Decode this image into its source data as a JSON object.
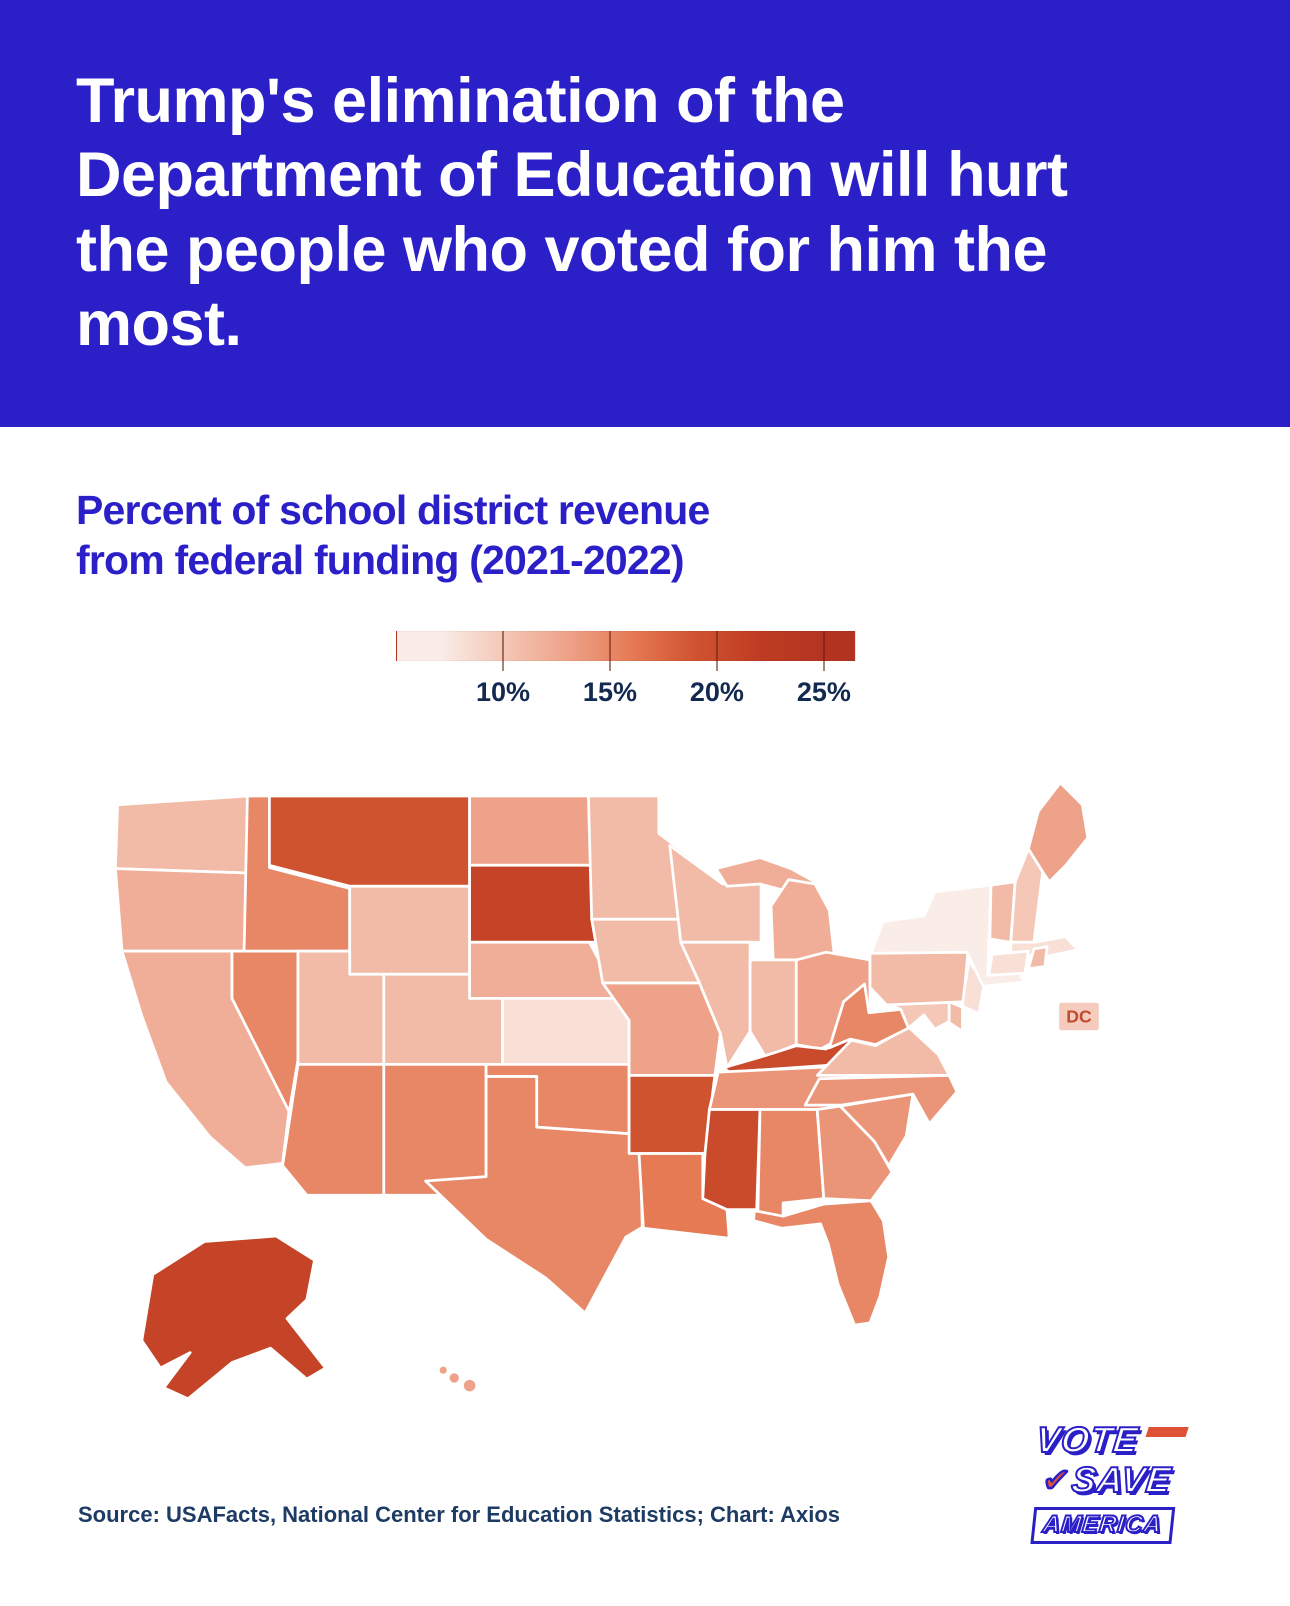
{
  "banner": {
    "title": "Trump's elimination of the Department of Education will hurt the people who voted for him the most."
  },
  "subtitle": "Percent of school district revenue from federal funding (2021-2022)",
  "legend": {
    "tick_labels": [
      "10%",
      "15%",
      "20%",
      "25%"
    ]
  },
  "map": {
    "dc_label": "DC"
  },
  "source": "Source: USAFacts, National Center for Education Statistics; Chart: Axios",
  "logo": {
    "lines": [
      "VOTE",
      "SAVE",
      "AMERICA"
    ]
  },
  "colors": {
    "accent_blue": "#2b1fc7",
    "accent_red": "#e05237",
    "scale_low": "#faede8",
    "scale_high": "#b23420"
  },
  "chart_data": {
    "type": "heatmap",
    "geography": "us-states-choropleth",
    "title": "Percent of school district revenue from federal funding (2021-2022)",
    "unit": "%",
    "legend_ticks": [
      10,
      15,
      20,
      25
    ],
    "legend_domain": [
      5,
      26.5
    ],
    "scale": [
      {
        "value": 7,
        "color": "#faede8"
      },
      {
        "value": 10,
        "color": "#f4c7b6"
      },
      {
        "value": 13,
        "color": "#eea289"
      },
      {
        "value": 16,
        "color": "#e57a55"
      },
      {
        "value": 19,
        "color": "#d05330"
      },
      {
        "value": 22,
        "color": "#bf3c23"
      },
      {
        "value": 25,
        "color": "#b23420"
      }
    ],
    "states": [
      {
        "abbr": "AL",
        "name": "Alabama",
        "value": 15
      },
      {
        "abbr": "AK",
        "name": "Alaska",
        "value": 21
      },
      {
        "abbr": "AZ",
        "name": "Arizona",
        "value": 15
      },
      {
        "abbr": "AR",
        "name": "Arkansas",
        "value": 19
      },
      {
        "abbr": "CA",
        "name": "California",
        "value": 12
      },
      {
        "abbr": "CO",
        "name": "Colorado",
        "value": 11
      },
      {
        "abbr": "CT",
        "name": "Connecticut",
        "value": 8
      },
      {
        "abbr": "DE",
        "name": "Delaware",
        "value": 11
      },
      {
        "abbr": "DC",
        "name": "District of Columbia",
        "value": 18
      },
      {
        "abbr": "FL",
        "name": "Florida",
        "value": 15
      },
      {
        "abbr": "GA",
        "name": "Georgia",
        "value": 14
      },
      {
        "abbr": "HI",
        "name": "Hawaii",
        "value": 13
      },
      {
        "abbr": "ID",
        "name": "Idaho",
        "value": 15
      },
      {
        "abbr": "IL",
        "name": "Illinois",
        "value": 11
      },
      {
        "abbr": "IN",
        "name": "Indiana",
        "value": 11
      },
      {
        "abbr": "IA",
        "name": "Iowa",
        "value": 11
      },
      {
        "abbr": "KS",
        "name": "Kansas",
        "value": 8
      },
      {
        "abbr": "KY",
        "name": "Kentucky",
        "value": 20
      },
      {
        "abbr": "LA",
        "name": "Louisiana",
        "value": 16
      },
      {
        "abbr": "ME",
        "name": "Maine",
        "value": 13
      },
      {
        "abbr": "MD",
        "name": "Maryland",
        "value": 10
      },
      {
        "abbr": "MA",
        "name": "Massachusetts",
        "value": 8
      },
      {
        "abbr": "MI",
        "name": "Michigan",
        "value": 12
      },
      {
        "abbr": "MN",
        "name": "Minnesota",
        "value": 11
      },
      {
        "abbr": "MS",
        "name": "Mississippi",
        "value": 20
      },
      {
        "abbr": "MO",
        "name": "Missouri",
        "value": 13
      },
      {
        "abbr": "MT",
        "name": "Montana",
        "value": 19
      },
      {
        "abbr": "NE",
        "name": "Nebraska",
        "value": 12
      },
      {
        "abbr": "NV",
        "name": "Nevada",
        "value": 15
      },
      {
        "abbr": "NH",
        "name": "New Hampshire",
        "value": 10
      },
      {
        "abbr": "NJ",
        "name": "New Jersey",
        "value": 8
      },
      {
        "abbr": "NM",
        "name": "New Mexico",
        "value": 15
      },
      {
        "abbr": "NY",
        "name": "New York",
        "value": 7
      },
      {
        "abbr": "NC",
        "name": "North Carolina",
        "value": 14
      },
      {
        "abbr": "ND",
        "name": "North Dakota",
        "value": 13
      },
      {
        "abbr": "OH",
        "name": "Ohio",
        "value": 13
      },
      {
        "abbr": "OK",
        "name": "Oklahoma",
        "value": 15
      },
      {
        "abbr": "OR",
        "name": "Oregon",
        "value": 12
      },
      {
        "abbr": "PA",
        "name": "Pennsylvania",
        "value": 11
      },
      {
        "abbr": "RI",
        "name": "Rhode Island",
        "value": 11
      },
      {
        "abbr": "SC",
        "name": "South Carolina",
        "value": 14
      },
      {
        "abbr": "SD",
        "name": "South Dakota",
        "value": 21
      },
      {
        "abbr": "TN",
        "name": "Tennessee",
        "value": 14
      },
      {
        "abbr": "TX",
        "name": "Texas",
        "value": 15
      },
      {
        "abbr": "UT",
        "name": "Utah",
        "value": 11
      },
      {
        "abbr": "VT",
        "name": "Vermont",
        "value": 11
      },
      {
        "abbr": "VA",
        "name": "Virginia",
        "value": 11
      },
      {
        "abbr": "WA",
        "name": "Washington",
        "value": 11
      },
      {
        "abbr": "WV",
        "name": "West Virginia",
        "value": 15
      },
      {
        "abbr": "WI",
        "name": "Wisconsin",
        "value": 11
      },
      {
        "abbr": "WY",
        "name": "Wyoming",
        "value": 11
      }
    ]
  }
}
